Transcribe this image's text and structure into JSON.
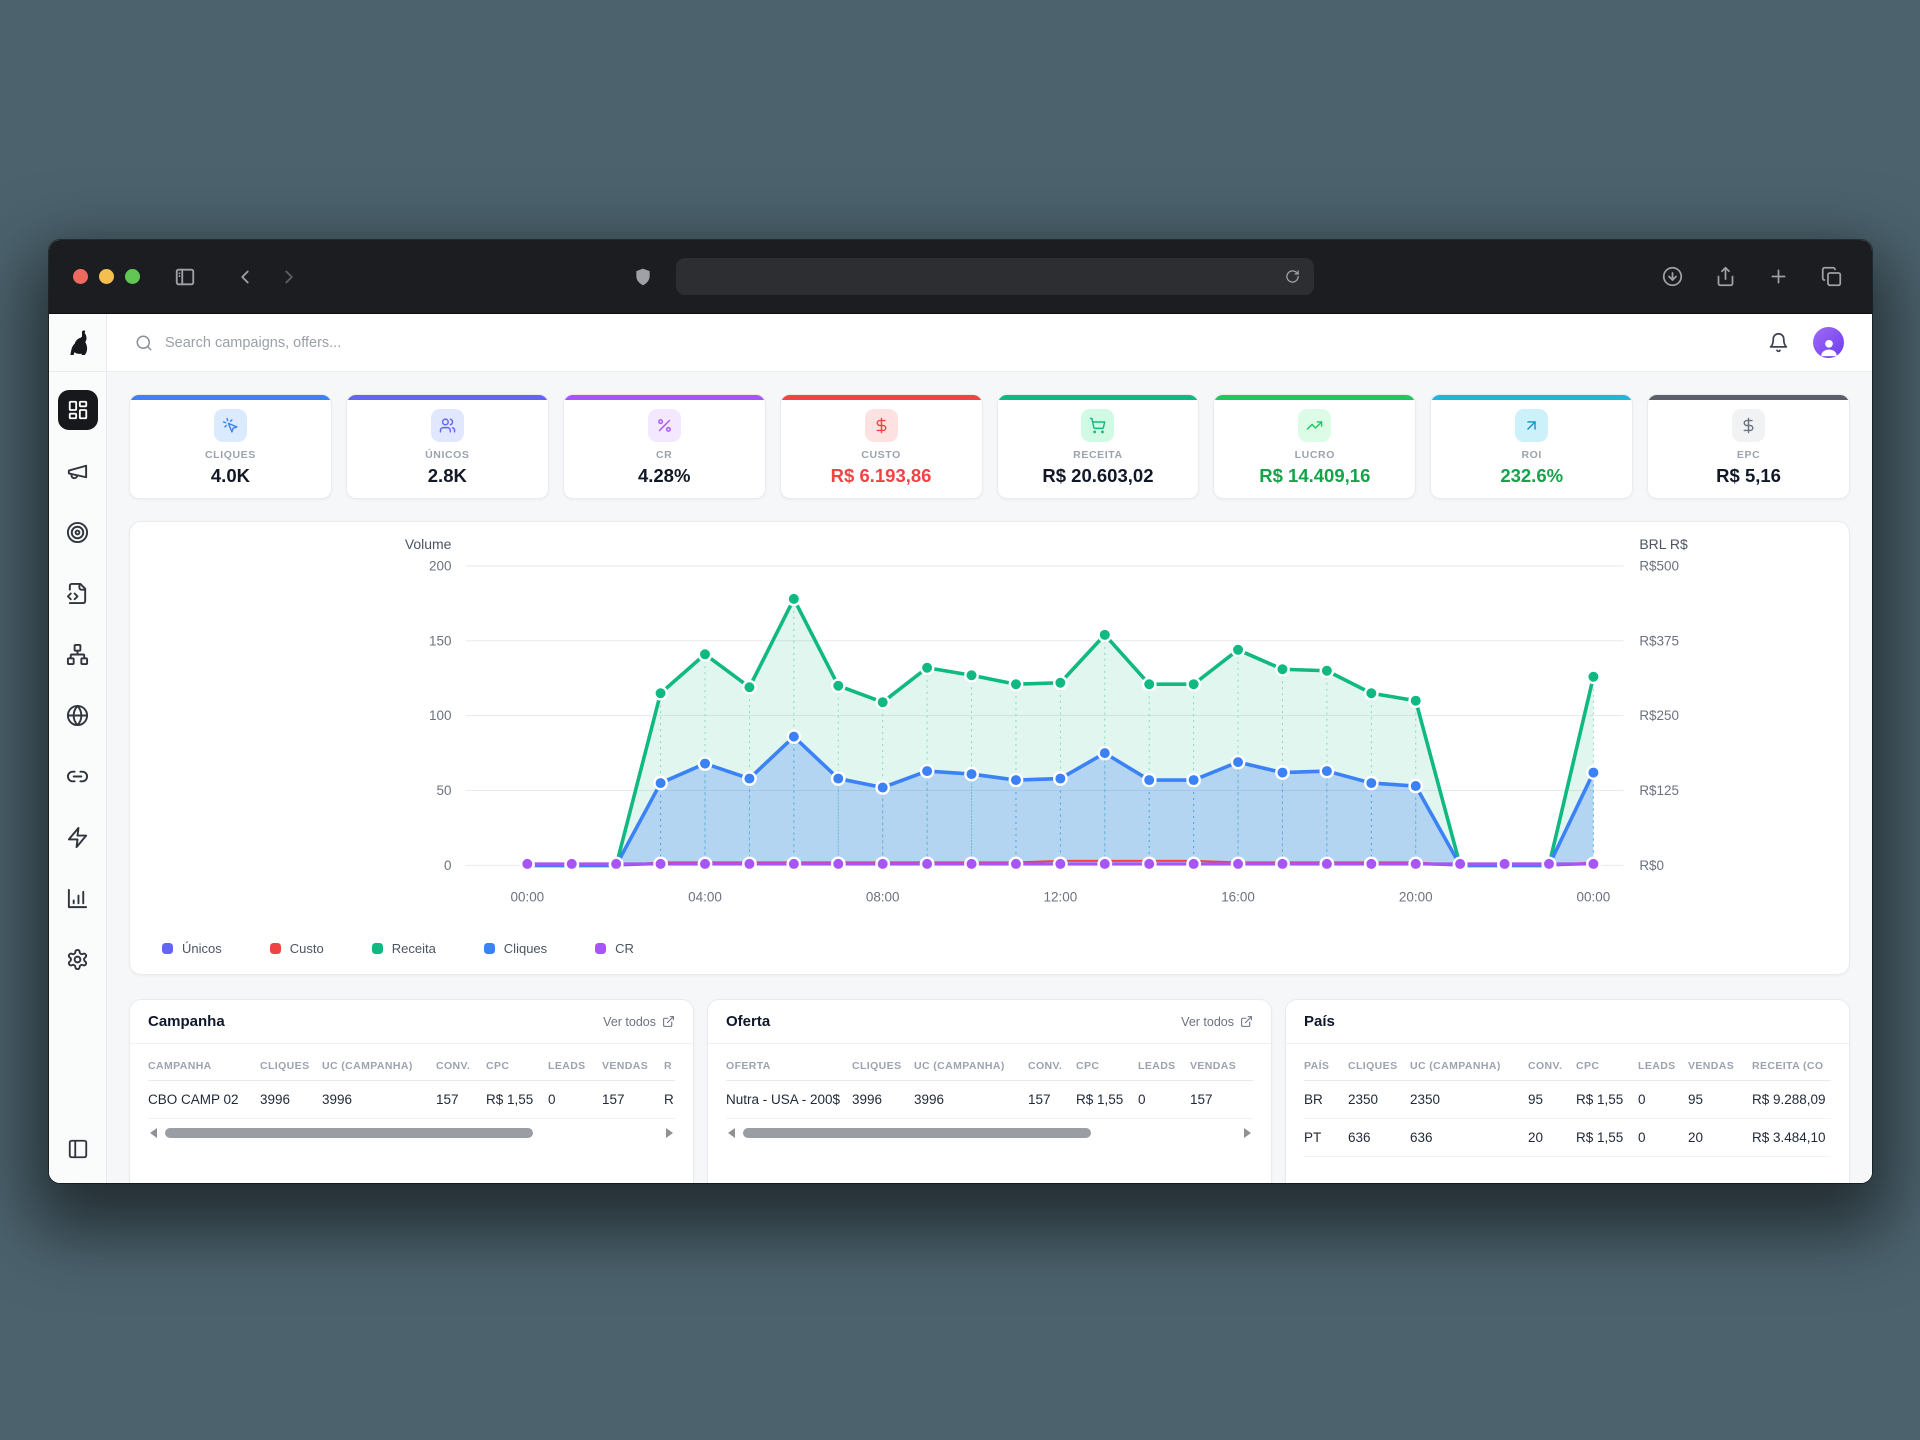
{
  "browser": {
    "traffic_lights": [
      "close",
      "minimize",
      "zoom"
    ],
    "toolbar_icons_left": [
      "sidebar-toggle-icon",
      "chevron-left-icon",
      "chevron-right-icon"
    ],
    "shield_icon": "shield-icon",
    "address_bar": {
      "value": "",
      "reload_icon": "reload-icon"
    },
    "toolbar_icons_right": [
      "download-icon",
      "share-icon",
      "new-tab-plus-icon",
      "tab-overview-icon"
    ]
  },
  "sidebar": {
    "logo_icon": "dog-logo",
    "items": [
      {
        "icon": "layout-dashboard-icon",
        "name": "dashboard",
        "active": true
      },
      {
        "icon": "megaphone-icon",
        "name": "campaigns",
        "active": false
      },
      {
        "icon": "target-icon",
        "name": "offers",
        "active": false
      },
      {
        "icon": "file-code-icon",
        "name": "landers",
        "active": false
      },
      {
        "icon": "network-icon",
        "name": "flows",
        "active": false
      },
      {
        "icon": "globe-icon",
        "name": "domains",
        "active": false
      },
      {
        "icon": "link-icon",
        "name": "links",
        "active": false
      },
      {
        "icon": "zap-icon",
        "name": "automation",
        "active": false
      },
      {
        "icon": "bar-chart-icon",
        "name": "reports",
        "active": false
      },
      {
        "icon": "settings-icon",
        "name": "settings",
        "active": false
      }
    ],
    "bottom_icon": "panel-collapse-icon"
  },
  "header": {
    "search_placeholder": "Search campaigns, offers...",
    "bell_icon": "bell-icon",
    "avatar_icon": "user-icon"
  },
  "kpis": [
    {
      "label": "CLIQUES",
      "value": "4.0K",
      "icon": "mouse-pointer-click-icon",
      "accent": "#3b82f6",
      "chip_bg": "#dbeafe",
      "chip_fg": "#3b82f6",
      "value_color": "#111827"
    },
    {
      "label": "ÚNICOS",
      "value": "2.8K",
      "icon": "users-icon",
      "accent": "#6366f1",
      "chip_bg": "#e0e7ff",
      "chip_fg": "#6366f1",
      "value_color": "#111827"
    },
    {
      "label": "CR",
      "value": "4.28%",
      "icon": "percent-icon",
      "accent": "#a855f7",
      "chip_bg": "#f3e8ff",
      "chip_fg": "#a855f7",
      "value_color": "#111827"
    },
    {
      "label": "CUSTO",
      "value": "R$ 6.193,86",
      "icon": "dollar-icon",
      "accent": "#ef4444",
      "chip_bg": "#fee2e2",
      "chip_fg": "#ef4444",
      "value_color": "#ef4444"
    },
    {
      "label": "RECEITA",
      "value": "R$ 20.603,02",
      "icon": "shopping-cart-icon",
      "accent": "#10b981",
      "chip_bg": "#d1fae5",
      "chip_fg": "#10b981",
      "value_color": "#111827"
    },
    {
      "label": "LUCRO",
      "value": "R$ 14.409,16",
      "icon": "trending-up-icon",
      "accent": "#22c55e",
      "chip_bg": "#dcfce7",
      "chip_fg": "#22c55e",
      "value_color": "#16a34a"
    },
    {
      "label": "ROI",
      "value": "232.6%",
      "icon": "arrow-up-right-icon",
      "accent": "#22b5dc",
      "chip_bg": "#cdf1fb",
      "chip_fg": "#1592c4",
      "value_color": "#16a34a"
    },
    {
      "label": "EPC",
      "value": "R$ 5,16",
      "icon": "dollar-icon",
      "accent": "#5b6068",
      "chip_bg": "#f1f2f4",
      "chip_fg": "#6b7280",
      "value_color": "#111827"
    }
  ],
  "chart_data": {
    "type": "area-line",
    "n_points": 25,
    "x_tick_every": 4,
    "x_tick_labels": [
      "00:00",
      "04:00",
      "08:00",
      "12:00",
      "16:00",
      "20:00",
      "00:00"
    ],
    "left_axis": {
      "title": "Volume",
      "ticks": [
        0,
        50,
        100,
        150,
        200
      ],
      "max": 200
    },
    "right_axis": {
      "title": "BRL R$",
      "ticks": [
        "R$0",
        "R$125",
        "R$250",
        "R$375",
        "R$500"
      ]
    },
    "grid": true,
    "legend_position": "bottom-left",
    "series": {
      "unicos": {
        "name": "Únicos",
        "color": "#6366f1",
        "values": [
          0,
          0,
          0,
          1,
          1,
          1,
          1,
          1,
          1,
          1,
          1,
          1,
          1,
          1,
          1,
          1,
          1,
          1,
          1,
          1,
          1,
          0,
          0,
          0,
          1
        ]
      },
      "custo": {
        "name": "Custo",
        "color": "#ef4444",
        "values": [
          0,
          0,
          0,
          2,
          2,
          2,
          2,
          2,
          2,
          2,
          2,
          2,
          3,
          3,
          3,
          3,
          2,
          2,
          2,
          2,
          2,
          0,
          0,
          0,
          2
        ]
      },
      "receita": {
        "name": "Receita",
        "color": "#10b981",
        "values": [
          0,
          0,
          0,
          115,
          141,
          119,
          178,
          120,
          109,
          132,
          127,
          121,
          122,
          154,
          121,
          121,
          144,
          131,
          130,
          115,
          110,
          0,
          0,
          0,
          126
        ]
      },
      "cliques": {
        "name": "Cliques",
        "color": "#3b82f6",
        "values": [
          0,
          0,
          0,
          55,
          68,
          58,
          86,
          58,
          52,
          63,
          61,
          57,
          58,
          75,
          57,
          57,
          69,
          62,
          63,
          55,
          53,
          0,
          0,
          0,
          62
        ]
      },
      "cr": {
        "name": "CR",
        "color": "#a855f7",
        "values": [
          1,
          1,
          1,
          1,
          1,
          1,
          1,
          1,
          1,
          1,
          1,
          1,
          1,
          1,
          1,
          1,
          1,
          1,
          1,
          1,
          1,
          1,
          1,
          1,
          1
        ]
      }
    },
    "legend": [
      {
        "label": "Únicos",
        "color": "#6366f1"
      },
      {
        "label": "Custo",
        "color": "#ef4444"
      },
      {
        "label": "Receita",
        "color": "#10b981"
      },
      {
        "label": "Cliques",
        "color": "#3b82f6"
      },
      {
        "label": "CR",
        "color": "#a855f7"
      }
    ]
  },
  "tables": [
    {
      "title": "Campanha",
      "link_label": "Ver todos",
      "headers": [
        "CAMPANHA",
        "CLIQUES",
        "UC (CAMPANHA)",
        "CONV.",
        "CPC",
        "LEADS",
        "VENDAS",
        "R"
      ],
      "rows": [
        [
          "CBO CAMP 02",
          "3996",
          "3996",
          "157",
          "R$ 1,55",
          "0",
          "157",
          "R"
        ]
      ],
      "scrollbar": {
        "visible": true,
        "thumb_pct": 74
      }
    },
    {
      "title": "Oferta",
      "link_label": "Ver todos",
      "headers": [
        "OFERTA",
        "CLIQUES",
        "UC (CAMPANHA)",
        "CONV.",
        "CPC",
        "LEADS",
        "VENDAS"
      ],
      "rows": [
        [
          "Nutra - USA - 200$",
          "3996",
          "3996",
          "157",
          "R$ 1,55",
          "0",
          "157"
        ]
      ],
      "scrollbar": {
        "visible": true,
        "thumb_pct": 70
      }
    },
    {
      "title": "País",
      "link_label": null,
      "headers": [
        "PAÍS",
        "CLIQUES",
        "UC (CAMPANHA)",
        "CONV.",
        "CPC",
        "LEADS",
        "VENDAS",
        "RECEITA (CO"
      ],
      "rows": [
        [
          "BR",
          "2350",
          "2350",
          "95",
          "R$ 1,55",
          "0",
          "95",
          "R$ 9.288,09"
        ],
        [
          "PT",
          "636",
          "636",
          "20",
          "R$ 1,55",
          "0",
          "20",
          "R$ 3.484,10"
        ]
      ],
      "scrollbar": {
        "visible": false,
        "thumb_pct": 0
      }
    }
  ]
}
